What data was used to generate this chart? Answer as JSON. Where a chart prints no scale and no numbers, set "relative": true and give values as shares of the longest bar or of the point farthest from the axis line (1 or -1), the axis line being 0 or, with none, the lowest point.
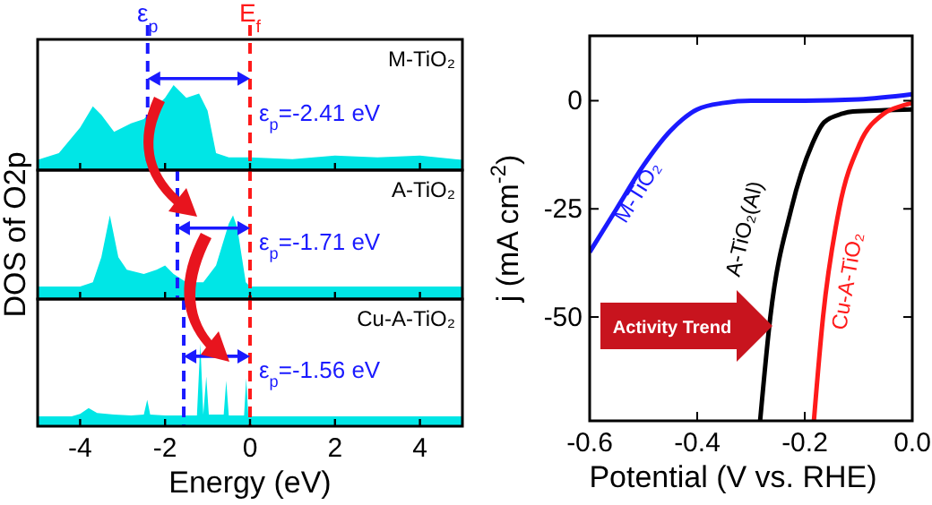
{
  "chart_data": [
    {
      "type": "area",
      "relative": true,
      "x": [
        -5,
        -4.5,
        -4,
        -3.7,
        -3.5,
        -3.2,
        -2.8,
        -2.5,
        -2.3,
        -2,
        -1.8,
        -1.5,
        -1.2,
        -1,
        -0.8,
        -0.5,
        0,
        1,
        2,
        3,
        4,
        5
      ],
      "series": [
        {
          "color": "#00e6e6",
          "values": [
            0.12,
            0.2,
            0.5,
            0.75,
            0.65,
            0.45,
            0.55,
            0.6,
            null,
            0.85,
            1,
            0.85,
            0.9,
            0.7,
            0.2,
            0.15,
            0.15,
            0.13,
            0.17,
            0.15,
            0.17,
            0.12
          ]
        }
      ],
      "xlim": [
        -5,
        5
      ],
      "xticks": [
        -4,
        -2,
        0,
        2,
        4
      ],
      "tick_labels": false,
      "ref_lines": [
        {
          "axis": "x",
          "value": -2.41,
          "label": "ε$_{p}$",
          "color": "#1a1aff",
          "line_style": "dashed"
        },
        {
          "axis": "x",
          "value": 0,
          "label": "E$_{f}$",
          "color": "#ff1a1a",
          "line_style": "dashed"
        }
      ],
      "annotations": [
        "M-TiO₂",
        "ε$_{p}$=-2.41 eV"
      ]
    },
    {
      "type": "area",
      "relative": true,
      "x": [
        -5,
        -4,
        -3.7,
        -3.5,
        -3.3,
        -3.1,
        -2.9,
        -2.5,
        -2.2,
        -2,
        -1.8,
        -1.5,
        -1.1,
        -0.8,
        -0.5,
        -0.4,
        -0.3,
        -0.1,
        0,
        5
      ],
      "series": [
        {
          "color": "#00e6e6",
          "values": [
            0.15,
            0.15,
            0.2,
            0.5,
            1,
            0.5,
            0.35,
            0.3,
            0.35,
            0.4,
            0.3,
            0.2,
            0.2,
            0.4,
            0.9,
            1,
            0.85,
            0.2,
            0.15,
            0.15
          ]
        }
      ],
      "xlim": [
        -5,
        5
      ],
      "xticks": [
        -4,
        -2,
        0,
        2,
        4
      ],
      "tick_labels": false,
      "ylabel": "DOS of O2p",
      "ref_lines": [
        {
          "axis": "x",
          "value": -1.71,
          "color": "#1a1aff",
          "line_style": "dashed"
        },
        {
          "axis": "x",
          "value": 0,
          "color": "#ff1a1a",
          "line_style": "dashed"
        }
      ],
      "annotations": [
        "A-TiO₂",
        "ε$_{p}$=-1.71 eV"
      ]
    },
    {
      "type": "area",
      "relative": true,
      "x": [
        -5,
        -4.2,
        -4,
        -3.8,
        -3.6,
        -3.2,
        -2.8,
        -2.5,
        -2.42,
        -2.35,
        -2,
        -1.6,
        -1.25,
        -1.17,
        -1.1,
        -1.03,
        -0.97,
        -0.62,
        -0.56,
        -0.5,
        -0.14,
        -0.09,
        -0.04,
        0.5,
        2,
        4,
        5
      ],
      "series": [
        {
          "color": "#00e6e6",
          "values": [
            0.12,
            0.12,
            0.15,
            0.22,
            0.16,
            0.14,
            0.13,
            0.14,
            0.32,
            0.14,
            0.13,
            0.13,
            0.13,
            1,
            0.14,
            0.6,
            0.14,
            0.14,
            0.55,
            0.13,
            0.13,
            0.58,
            0.12,
            0.12,
            0.12,
            0.12,
            0.12
          ]
        }
      ],
      "xlim": [
        -5,
        5
      ],
      "xticks": [
        -4,
        -2,
        0,
        2,
        4
      ],
      "tick_labels": "x",
      "xlabel": "Energy (eV)",
      "ref_lines": [
        {
          "axis": "x",
          "value": -1.56,
          "color": "#1a1aff",
          "line_style": "dashed"
        },
        {
          "axis": "x",
          "value": 0,
          "color": "#ff1a1a",
          "line_style": "dashed"
        }
      ],
      "annotations": [
        "Cu-A-TiO₂",
        "ε$_{p}$=-1.56 eV"
      ]
    },
    {
      "type": "line",
      "xlim": [
        -0.6,
        0
      ],
      "xticks": [
        -0.6,
        -0.4,
        -0.2,
        {
          "value": 0,
          "label": "0.0"
        }
      ],
      "ylim": [
        -74,
        15
      ],
      "yticks": [
        0,
        -25,
        -50
      ],
      "xlabel": "Potential (V vs. RHE)",
      "ylabel": "j (mA cm$^{-2}$)",
      "series": [
        {
          "name": "M-TiO₂",
          "color": "#1a1aff",
          "x": [
            -0.6,
            -0.55,
            -0.5,
            -0.45,
            -0.4,
            -0.35,
            -0.3,
            -0.2,
            -0.1,
            0
          ],
          "values": [
            -35,
            -25,
            -15,
            -7,
            -2,
            -0.5,
            0,
            0,
            0.3,
            1.5
          ]
        },
        {
          "name": "A-TiO₂(Al)",
          "color": "#000000",
          "x": [
            -0.283,
            -0.264,
            -0.225,
            -0.186,
            -0.164,
            -0.13,
            -0.11,
            -0.05,
            0
          ],
          "values": [
            -74,
            -50,
            -25,
            -10,
            -5,
            -3,
            -2.5,
            -2.2,
            -2
          ]
        },
        {
          "name": "Cu-A-TiO₂",
          "color": "#ff1a1a",
          "x": [
            -0.183,
            -0.166,
            -0.136,
            -0.098,
            -0.053,
            -0.02,
            0
          ],
          "values": [
            -74,
            -50,
            -25,
            -10,
            -3,
            -1.2,
            -0.5
          ]
        }
      ],
      "annotations": [
        "Activity Trend"
      ]
    }
  ]
}
